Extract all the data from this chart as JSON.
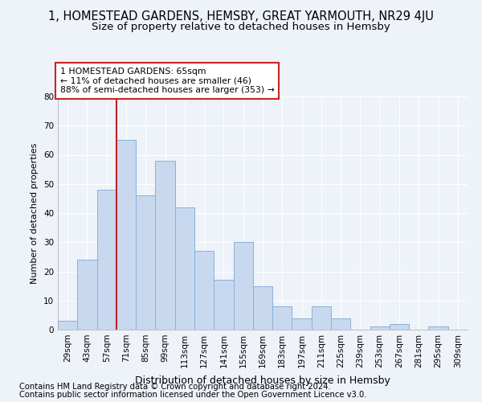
{
  "title": "1, HOMESTEAD GARDENS, HEMSBY, GREAT YARMOUTH, NR29 4JU",
  "subtitle": "Size of property relative to detached houses in Hemsby",
  "xlabel": "Distribution of detached houses by size in Hemsby",
  "ylabel": "Number of detached properties",
  "bar_labels": [
    "29sqm",
    "43sqm",
    "57sqm",
    "71sqm",
    "85sqm",
    "99sqm",
    "113sqm",
    "127sqm",
    "141sqm",
    "155sqm",
    "169sqm",
    "183sqm",
    "197sqm",
    "211sqm",
    "225sqm",
    "239sqm",
    "253sqm",
    "267sqm",
    "281sqm",
    "295sqm",
    "309sqm"
  ],
  "bar_values": [
    3,
    24,
    48,
    65,
    46,
    58,
    42,
    27,
    17,
    30,
    15,
    8,
    4,
    8,
    4,
    0,
    1,
    2,
    0,
    1,
    0
  ],
  "bar_color": "#c8d9ef",
  "bar_edge_color": "#8ab0d8",
  "vline_x": 2.5,
  "vline_color": "#bb2222",
  "annotation_line1": "1 HOMESTEAD GARDENS: 65sqm",
  "annotation_line2": "← 11% of detached houses are smaller (46)",
  "annotation_line3": "88% of semi-detached houses are larger (353) →",
  "annotation_box_color": "#ffffff",
  "annotation_box_edge": "#cc2222",
  "ylim": [
    0,
    80
  ],
  "yticks": [
    0,
    10,
    20,
    30,
    40,
    50,
    60,
    70,
    80
  ],
  "footnote1": "Contains HM Land Registry data © Crown copyright and database right 2024.",
  "footnote2": "Contains public sector information licensed under the Open Government Licence v3.0.",
  "bg_color": "#eef2f9",
  "plot_bg_color": "#eef2f9",
  "grid_color": "#ffffff",
  "title_fontsize": 10.5,
  "subtitle_fontsize": 9.5,
  "xlabel_fontsize": 9,
  "ylabel_fontsize": 8,
  "tick_fontsize": 7.5,
  "annotation_fontsize": 7.8,
  "footnote_fontsize": 7.2
}
